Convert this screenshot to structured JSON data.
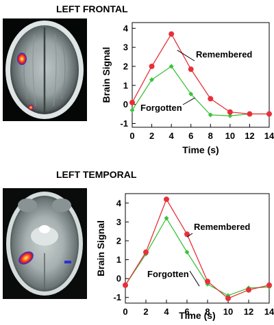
{
  "colors": {
    "remembered": "#e8303a",
    "forgotten": "#3cc23c",
    "axis": "#000000"
  },
  "chart_data": [
    {
      "type": "line",
      "title": "LEFT FRONTAL",
      "xlabel": "Time (s)",
      "ylabel": "Brain Signal",
      "x": [
        0,
        2,
        4,
        6,
        8,
        10,
        12,
        14
      ],
      "xlim": [
        0,
        14
      ],
      "ylim": [
        -1.2,
        4.3
      ],
      "xticks": [
        0,
        2,
        4,
        6,
        8,
        10,
        12,
        14
      ],
      "yticks": [
        -1,
        0,
        1,
        2,
        3,
        4
      ],
      "series": [
        {
          "name": "Remembered",
          "color": "#e8303a",
          "marker": "circle",
          "values": [
            0.1,
            2.0,
            3.7,
            1.85,
            0.3,
            -0.4,
            -0.5,
            -0.5
          ]
        },
        {
          "name": "Forgotten",
          "color": "#3cc23c",
          "marker": "diamond",
          "values": [
            -0.3,
            1.3,
            2.0,
            0.55,
            -0.55,
            -0.6,
            -0.5,
            -0.5
          ]
        }
      ]
    },
    {
      "type": "line",
      "title": "LEFT TEMPORAL",
      "xlabel": "Time (s)",
      "ylabel": "Brain Signal",
      "x": [
        0,
        2,
        4,
        6,
        8,
        10,
        12,
        14
      ],
      "xlim": [
        0,
        14
      ],
      "ylim": [
        -1.3,
        4.5
      ],
      "xticks": [
        0,
        2,
        4,
        6,
        8,
        10,
        12,
        14
      ],
      "yticks": [
        -1,
        0,
        1,
        2,
        3,
        4
      ],
      "series": [
        {
          "name": "Remembered",
          "color": "#e8303a",
          "marker": "circle",
          "values": [
            -0.35,
            1.4,
            4.2,
            2.35,
            -0.15,
            -1.05,
            -0.6,
            -0.35
          ]
        },
        {
          "name": "Forgotten",
          "color": "#3cc23c",
          "marker": "diamond",
          "values": [
            -0.35,
            1.3,
            3.2,
            1.4,
            -0.3,
            -0.9,
            -0.5,
            -0.45
          ]
        }
      ]
    }
  ]
}
